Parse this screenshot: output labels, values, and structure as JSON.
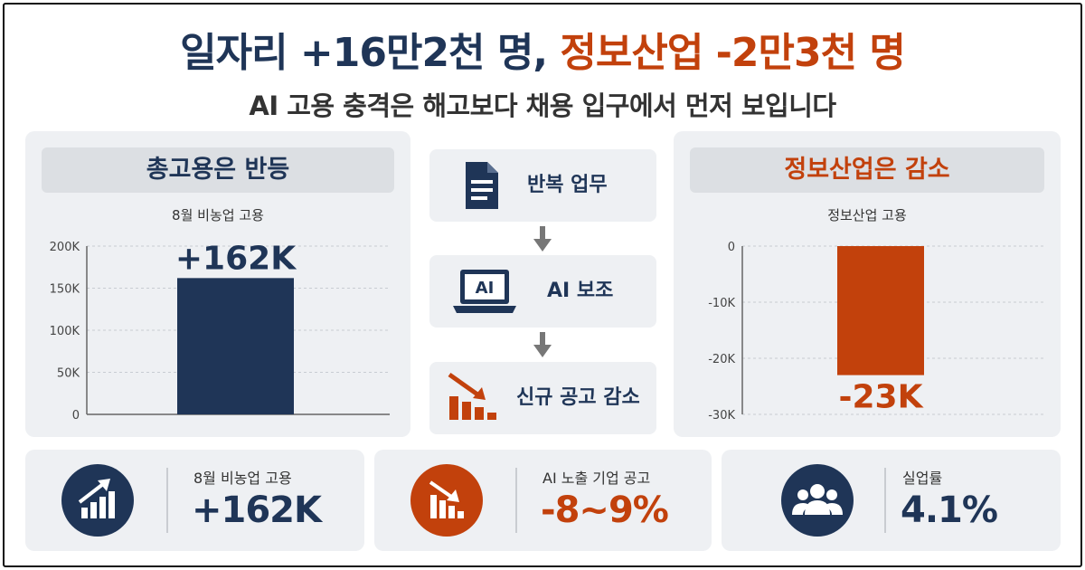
{
  "header": {
    "title_main": "일자리 +16만2천 명,",
    "title_accent": "정보산업 -2만3천 명",
    "subtitle": "AI 고용 충격은 해고보다 채용 입구에서 먼저 보입니다"
  },
  "left_panel": {
    "heading": "총고용은 반등",
    "chart_title": "8월 비농업 고용"
  },
  "right_panel": {
    "heading": "정보산업은 감소",
    "chart_title": "정보산업 고용"
  },
  "flow": {
    "steps": [
      {
        "label": "반복 업무",
        "icon": "document-icon"
      },
      {
        "label": "AI 보조",
        "icon": "laptop-icon",
        "icon_text": "AI"
      },
      {
        "label": "신규 공고 감소",
        "icon": "declining-chart-icon"
      }
    ]
  },
  "stats": [
    {
      "label": "8월 비농업 고용",
      "value": "+162K",
      "icon": "growth-chart-icon",
      "color": "#1f3557"
    },
    {
      "label": "AI 노출 기업 공고",
      "value": "-8~9%",
      "icon": "declining-chart-icon",
      "color": "#c2410c"
    },
    {
      "label": "실업률",
      "value": "4.1%",
      "icon": "people-group-icon",
      "color": "#1f3557"
    }
  ],
  "colors": {
    "navy": "#1f3557",
    "orange": "#c2410c"
  },
  "chart_data": [
    {
      "type": "bar",
      "title": "8월 비농업 고용",
      "categories": [
        ""
      ],
      "values": [
        162
      ],
      "data_labels": [
        "+162K"
      ],
      "ylim": [
        0,
        200
      ],
      "yticks": [
        0,
        50,
        100,
        150,
        200
      ],
      "ytick_labels": [
        "0",
        "50K",
        "100K",
        "150K",
        "200K"
      ],
      "grid": true,
      "color": "#1f3557"
    },
    {
      "type": "bar",
      "title": "정보산업 고용",
      "categories": [
        ""
      ],
      "values": [
        -23
      ],
      "data_labels": [
        "-23K"
      ],
      "ylim": [
        -30,
        0
      ],
      "yticks": [
        0,
        -10,
        -20,
        -30
      ],
      "ytick_labels": [
        "0",
        "-10K",
        "-20K",
        "-30K"
      ],
      "grid": true,
      "color": "#c2410c"
    }
  ]
}
